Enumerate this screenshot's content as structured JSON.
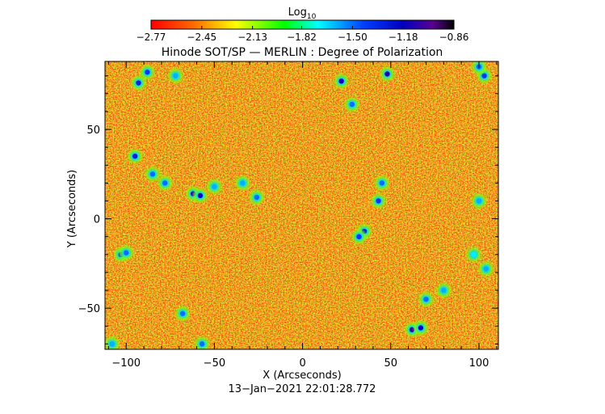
{
  "chart_data": {
    "type": "heatmap",
    "title": "Hinode SOT/SP — MERLIN : Degree of Polarization",
    "xlabel": "X (Arcseconds)",
    "ylabel": "Y (Arcseconds)",
    "xlim": [
      -112,
      111
    ],
    "ylim": [
      -73,
      88
    ],
    "x_ticks": [
      -100,
      -50,
      0,
      50,
      100
    ],
    "y_ticks": [
      -50,
      0,
      50
    ],
    "x_tick_labels": [
      "−100",
      "−50",
      "0",
      "50",
      "100"
    ],
    "y_tick_labels": [
      "−50",
      "0",
      "50"
    ],
    "colorbar": {
      "label_base": "Log",
      "label_sub": "10",
      "min": -2.77,
      "max": -0.86,
      "ticks": [
        -2.77,
        -2.45,
        -2.13,
        -1.82,
        -1.5,
        -1.18,
        -0.86
      ],
      "tick_labels": [
        "−2.77",
        "−2.45",
        "−2.13",
        "−1.82",
        "−1.50",
        "−1.18",
        "−0.86"
      ],
      "colormap": "rainbow (red → yellow → green → cyan → blue → purple → black)"
    },
    "grid": false,
    "background_value": -2.65,
    "features": [
      {
        "x": -93,
        "y": 76,
        "value": -1.3
      },
      {
        "x": -88,
        "y": 82,
        "value": -1.4
      },
      {
        "x": -72,
        "y": 80,
        "value": -1.6
      },
      {
        "x": -95,
        "y": 35,
        "value": -1.3
      },
      {
        "x": -85,
        "y": 25,
        "value": -1.5
      },
      {
        "x": -78,
        "y": 20,
        "value": -1.5
      },
      {
        "x": -62,
        "y": 14,
        "value": -1.1
      },
      {
        "x": -58,
        "y": 13,
        "value": -1.2
      },
      {
        "x": -50,
        "y": 18,
        "value": -1.6
      },
      {
        "x": -34,
        "y": 20,
        "value": -1.6
      },
      {
        "x": -26,
        "y": 12,
        "value": -1.5
      },
      {
        "x": 22,
        "y": 77,
        "value": -1.2
      },
      {
        "x": 48,
        "y": 81,
        "value": -1.1
      },
      {
        "x": 28,
        "y": 64,
        "value": -1.5
      },
      {
        "x": 45,
        "y": 20,
        "value": -1.5
      },
      {
        "x": 43,
        "y": 10,
        "value": -1.4
      },
      {
        "x": 35,
        "y": -7,
        "value": -1.3
      },
      {
        "x": 32,
        "y": -10,
        "value": -1.4
      },
      {
        "x": -103,
        "y": -20,
        "value": -1.3
      },
      {
        "x": -100,
        "y": -19,
        "value": -1.5
      },
      {
        "x": -68,
        "y": -53,
        "value": -1.5
      },
      {
        "x": -57,
        "y": -70,
        "value": -1.5
      },
      {
        "x": 62,
        "y": -62,
        "value": -1.1
      },
      {
        "x": 67,
        "y": -61,
        "value": -1.2
      },
      {
        "x": 70,
        "y": -45,
        "value": -1.5
      },
      {
        "x": 80,
        "y": -40,
        "value": -1.6
      },
      {
        "x": 103,
        "y": 80,
        "value": -1.4
      },
      {
        "x": 100,
        "y": 85,
        "value": -1.5
      },
      {
        "x": 100,
        "y": 10,
        "value": -1.6
      },
      {
        "x": 104,
        "y": -28,
        "value": -1.6
      },
      {
        "x": -108,
        "y": -70,
        "value": -1.6
      },
      {
        "x": 97,
        "y": -20,
        "value": -1.7
      }
    ]
  },
  "footer": {
    "timestamp": "13−Jan−2021 22:01:28.772"
  }
}
